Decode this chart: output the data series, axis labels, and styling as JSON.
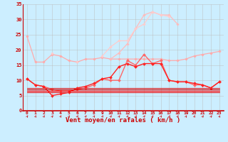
{
  "x": [
    0,
    1,
    2,
    3,
    4,
    5,
    6,
    7,
    8,
    9,
    10,
    11,
    12,
    13,
    14,
    15,
    16,
    17,
    18,
    19,
    20,
    21,
    22,
    23
  ],
  "series": [
    {
      "color": "#ffaaaa",
      "linewidth": 0.9,
      "marker": "D",
      "markersize": 1.8,
      "connect": true,
      "values": [
        24.5,
        16,
        16,
        18.5,
        18,
        16.5,
        16,
        17,
        17,
        17.5,
        17,
        17,
        17,
        17,
        17,
        17,
        17,
        16.5,
        16.5,
        17,
        18,
        18.5,
        19,
        19.5
      ]
    },
    {
      "color": "#ffbbbb",
      "linewidth": 0.9,
      "marker": "D",
      "markersize": 1.8,
      "connect": false,
      "values": [
        null,
        null,
        null,
        null,
        null,
        null,
        null,
        null,
        null,
        null,
        17,
        19,
        22,
        27,
        31.5,
        32.5,
        31.5,
        31.5,
        28.5,
        null,
        null,
        null,
        null,
        null
      ]
    },
    {
      "color": "#ffcccc",
      "linewidth": 0.9,
      "marker": "D",
      "markersize": 1.8,
      "connect": false,
      "values": [
        null,
        null,
        null,
        19,
        null,
        null,
        16,
        null,
        null,
        18,
        21,
        23,
        23,
        27,
        28.5,
        32.5,
        31.5,
        31,
        null,
        null,
        null,
        null,
        null,
        null
      ]
    },
    {
      "color": "#ff6666",
      "linewidth": 1.0,
      "marker": "D",
      "markersize": 2.0,
      "connect": true,
      "values": [
        10.5,
        8.5,
        8.0,
        7,
        6.5,
        6.5,
        7,
        7.5,
        8.5,
        10.5,
        10,
        10,
        16.5,
        15,
        18.5,
        15.5,
        16.5,
        10,
        9.5,
        9.5,
        8.5,
        8.5,
        7.5,
        9.5
      ]
    },
    {
      "color": "#ff2222",
      "linewidth": 1.0,
      "marker": "D",
      "markersize": 2.0,
      "connect": true,
      "values": [
        10.5,
        8.5,
        8.0,
        5,
        5.5,
        6.0,
        7.5,
        8.0,
        9,
        10.5,
        11,
        14.5,
        15.5,
        14.5,
        15.5,
        15.5,
        15.5,
        10,
        9.5,
        9.5,
        9,
        8.5,
        7.5,
        9.5
      ]
    },
    {
      "color": "#cc0000",
      "linewidth": 0.8,
      "marker": null,
      "markersize": 0,
      "connect": true,
      "values": [
        7,
        7,
        7,
        7,
        7,
        7,
        7,
        7,
        7,
        7,
        7,
        7,
        7,
        7,
        7,
        7,
        7,
        7,
        7,
        7,
        7,
        7,
        7,
        7
      ]
    },
    {
      "color": "#dd2222",
      "linewidth": 0.8,
      "marker": null,
      "markersize": 0,
      "connect": true,
      "values": [
        7.5,
        7.5,
        7.5,
        7.5,
        7.5,
        7.5,
        7.5,
        7.5,
        7.5,
        7.5,
        7.5,
        7.5,
        7.5,
        7.5,
        7.5,
        7.5,
        7.5,
        7.5,
        7.5,
        7.5,
        7.5,
        7.5,
        7.5,
        7.5
      ]
    },
    {
      "color": "#ff0000",
      "linewidth": 0.8,
      "marker": null,
      "markersize": 0,
      "connect": true,
      "values": [
        6.5,
        6.5,
        6.5,
        6.5,
        6.5,
        6.5,
        6.5,
        6.5,
        6.5,
        6.5,
        6.5,
        6.5,
        6.5,
        6.5,
        6.5,
        6.5,
        6.5,
        6.5,
        6.5,
        6.5,
        6.5,
        6.5,
        6.5,
        6.5
      ]
    },
    {
      "color": "#ee1111",
      "linewidth": 0.8,
      "marker": null,
      "markersize": 0,
      "connect": true,
      "values": [
        6.0,
        6.0,
        6.0,
        6.0,
        6.0,
        6.0,
        6.0,
        6.0,
        6.0,
        6.0,
        6.0,
        6.0,
        6.0,
        6.0,
        6.0,
        6.0,
        6.0,
        6.0,
        6.0,
        6.0,
        6.0,
        6.0,
        6.0,
        6.0
      ]
    }
  ],
  "xlabel": "Vent moyen/en rafales ( km/h )",
  "ylim": [
    0,
    35
  ],
  "xlim": [
    -0.5,
    23.5
  ],
  "yticks": [
    0,
    5,
    10,
    15,
    20,
    25,
    30,
    35
  ],
  "xticks": [
    0,
    1,
    2,
    3,
    4,
    5,
    6,
    7,
    8,
    9,
    10,
    11,
    12,
    13,
    14,
    15,
    16,
    17,
    18,
    19,
    20,
    21,
    22,
    23
  ],
  "background_color": "#cceeff",
  "grid_color": "#bbbbbb",
  "arrow_color": "#cc0000",
  "tick_color": "#cc0000",
  "xlabel_color": "#cc0000"
}
